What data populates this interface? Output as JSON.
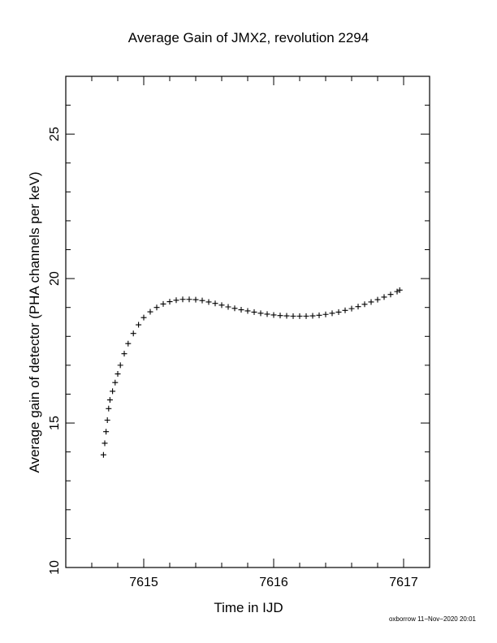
{
  "footer": "oxborrow 11−Nov−2020 20:01",
  "chart_data": {
    "type": "scatter",
    "title": "Average Gain of JMX2, revolution 2294",
    "xlabel": "Time in IJD",
    "ylabel": "Average gain of detector (PHA channels per keV)",
    "xlim": [
      7614.4,
      7617.2
    ],
    "ylim": [
      10,
      27
    ],
    "xticks": [
      7615,
      7616,
      7617
    ],
    "xtick_labels": [
      "7615",
      "7616",
      "7617"
    ],
    "yticks": [
      10,
      15,
      20,
      25
    ],
    "ytick_labels": [
      "10",
      "15",
      "20",
      "25"
    ],
    "grid": false,
    "marker": "+",
    "series": [
      {
        "color": "#000000",
        "x": [
          7614.69,
          7614.7,
          7614.71,
          7614.72,
          7614.73,
          7614.74,
          7614.76,
          7614.78,
          7614.8,
          7614.82,
          7614.85,
          7614.88,
          7614.92,
          7614.96,
          7615.0,
          7615.05,
          7615.1,
          7615.15,
          7615.2,
          7615.25,
          7615.3,
          7615.35,
          7615.4,
          7615.45,
          7615.5,
          7615.55,
          7615.6,
          7615.65,
          7615.7,
          7615.75,
          7615.8,
          7615.85,
          7615.9,
          7615.95,
          7616.0,
          7616.05,
          7616.1,
          7616.15,
          7616.2,
          7616.25,
          7616.3,
          7616.35,
          7616.4,
          7616.45,
          7616.5,
          7616.55,
          7616.6,
          7616.65,
          7616.7,
          7616.75,
          7616.8,
          7616.85,
          7616.9,
          7616.95,
          7616.97
        ],
        "y": [
          13.9,
          14.3,
          14.7,
          15.1,
          15.5,
          15.8,
          16.1,
          16.4,
          16.7,
          17.0,
          17.4,
          17.75,
          18.1,
          18.4,
          18.65,
          18.85,
          19.0,
          19.12,
          19.2,
          19.25,
          19.28,
          19.28,
          19.27,
          19.24,
          19.19,
          19.14,
          19.08,
          19.02,
          18.97,
          18.92,
          18.88,
          18.84,
          18.8,
          18.77,
          18.74,
          18.72,
          18.71,
          18.7,
          18.7,
          18.7,
          18.71,
          18.73,
          18.76,
          18.8,
          18.84,
          18.9,
          18.96,
          19.03,
          19.11,
          19.19,
          19.27,
          19.36,
          19.45,
          19.55,
          19.6
        ]
      }
    ]
  }
}
